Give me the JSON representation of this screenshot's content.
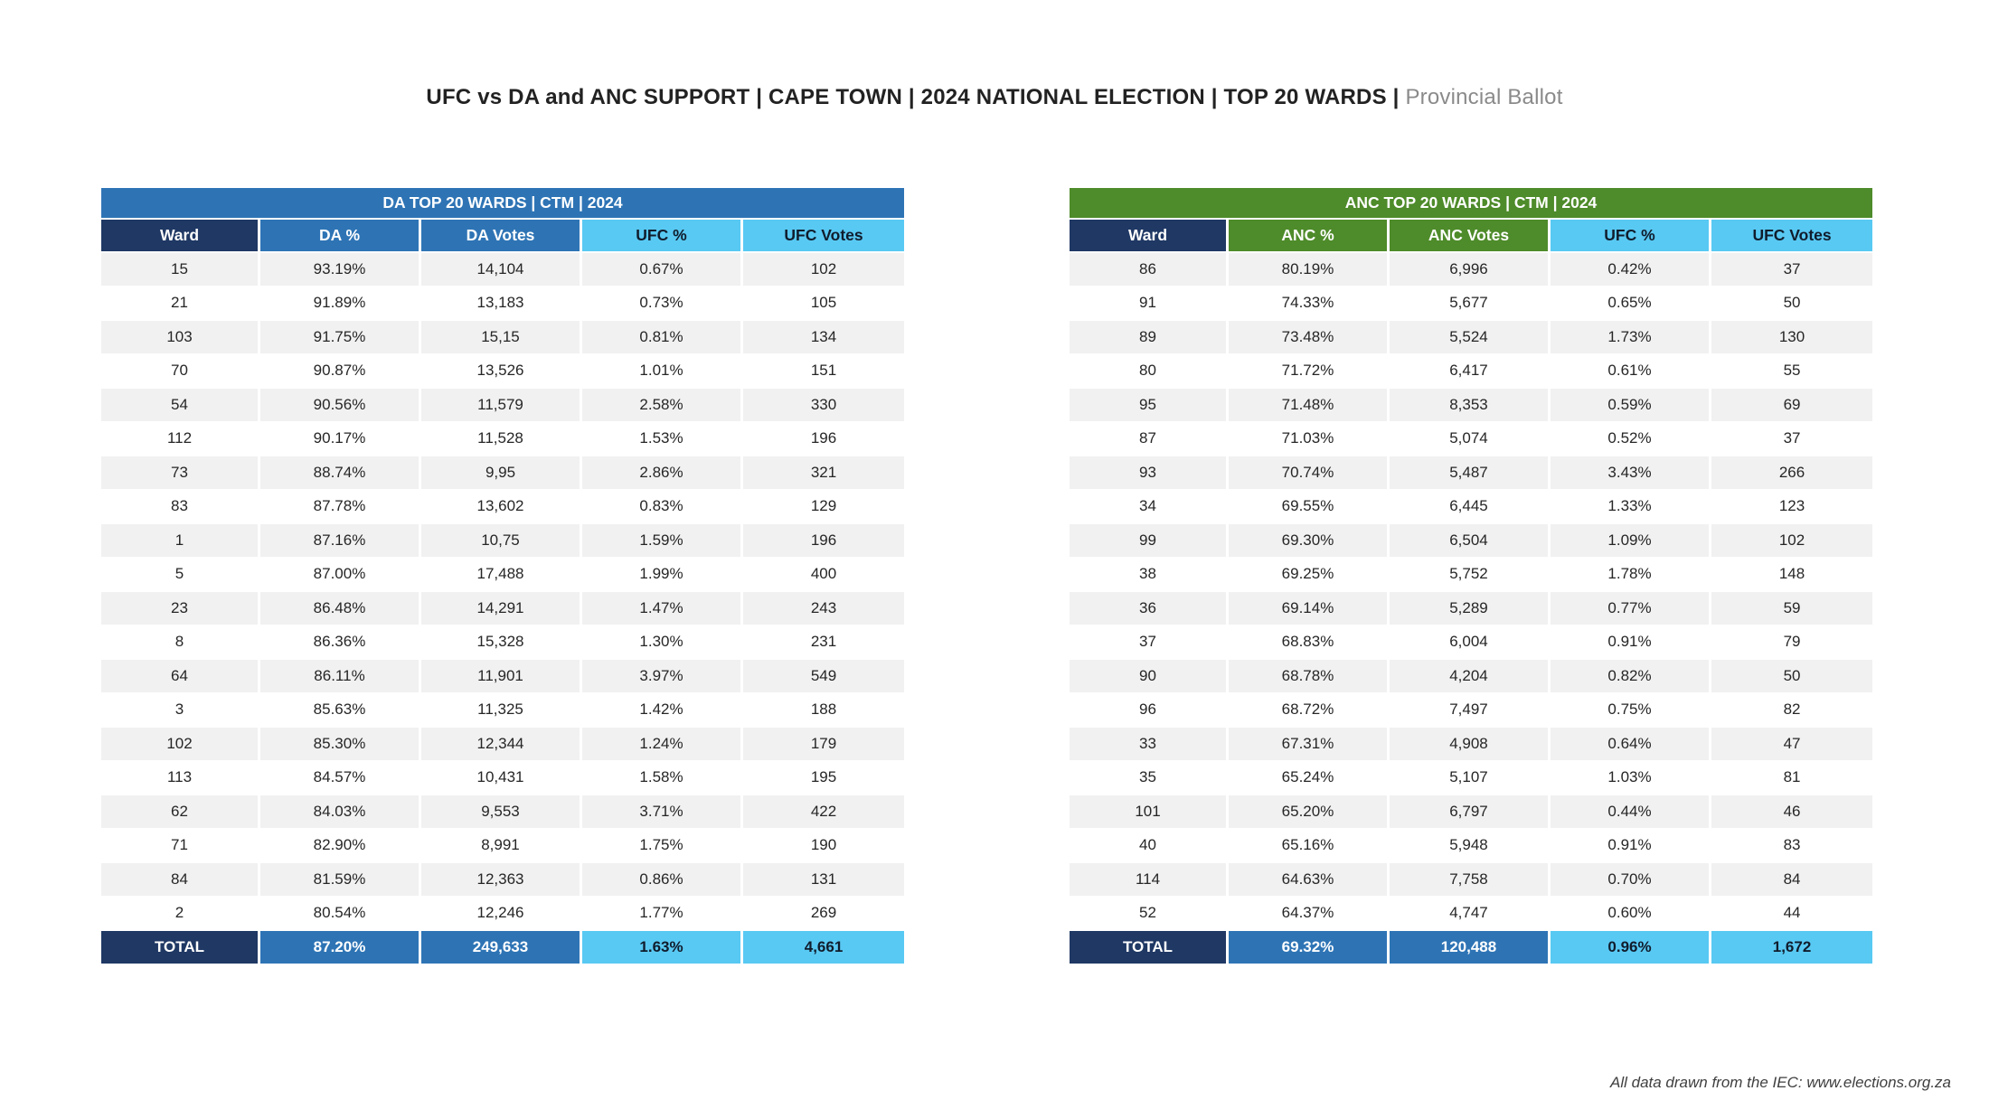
{
  "page": {
    "title_main": "UFC vs DA and ANC SUPPORT | CAPE TOWN | 2024 NATIONAL ELECTION | TOP 20 WARDS",
    "title_separator": " | ",
    "title_suffix": "Provincial Ballot",
    "footer": "All data drawn from the IEC: www.elections.org.za"
  },
  "colors": {
    "navy": "#1F3864",
    "da_blue": "#2E74B5",
    "anc_green": "#4E8B2A",
    "ufc_blue": "#58C9F3",
    "row_alt": "#F1F1F1"
  },
  "chart_data": [
    {
      "type": "table",
      "title": "DA TOP 20 WARDS | CTM | 2024",
      "columns": [
        "Ward",
        "DA %",
        "DA Votes",
        "UFC %",
        "UFC Votes"
      ],
      "rows": [
        [
          "15",
          "93.19%",
          "14,104",
          "0.67%",
          "102"
        ],
        [
          "21",
          "91.89%",
          "13,183",
          "0.73%",
          "105"
        ],
        [
          "103",
          "91.75%",
          "15,15",
          "0.81%",
          "134"
        ],
        [
          "70",
          "90.87%",
          "13,526",
          "1.01%",
          "151"
        ],
        [
          "54",
          "90.56%",
          "11,579",
          "2.58%",
          "330"
        ],
        [
          "112",
          "90.17%",
          "11,528",
          "1.53%",
          "196"
        ],
        [
          "73",
          "88.74%",
          "9,95",
          "2.86%",
          "321"
        ],
        [
          "83",
          "87.78%",
          "13,602",
          "0.83%",
          "129"
        ],
        [
          "1",
          "87.16%",
          "10,75",
          "1.59%",
          "196"
        ],
        [
          "5",
          "87.00%",
          "17,488",
          "1.99%",
          "400"
        ],
        [
          "23",
          "86.48%",
          "14,291",
          "1.47%",
          "243"
        ],
        [
          "8",
          "86.36%",
          "15,328",
          "1.30%",
          "231"
        ],
        [
          "64",
          "86.11%",
          "11,901",
          "3.97%",
          "549"
        ],
        [
          "3",
          "85.63%",
          "11,325",
          "1.42%",
          "188"
        ],
        [
          "102",
          "85.30%",
          "12,344",
          "1.24%",
          "179"
        ],
        [
          "113",
          "84.57%",
          "10,431",
          "1.58%",
          "195"
        ],
        [
          "62",
          "84.03%",
          "9,553",
          "3.71%",
          "422"
        ],
        [
          "71",
          "82.90%",
          "8,991",
          "1.75%",
          "190"
        ],
        [
          "84",
          "81.59%",
          "12,363",
          "0.86%",
          "131"
        ],
        [
          "2",
          "80.54%",
          "12,246",
          "1.77%",
          "269"
        ]
      ],
      "total": [
        "TOTAL",
        "87.20%",
        "249,633",
        "1.63%",
        "4,661"
      ]
    },
    {
      "type": "table",
      "title": "ANC TOP 20 WARDS | CTM | 2024",
      "columns": [
        "Ward",
        "ANC %",
        "ANC Votes",
        "UFC %",
        "UFC Votes"
      ],
      "rows": [
        [
          "86",
          "80.19%",
          "6,996",
          "0.42%",
          "37"
        ],
        [
          "91",
          "74.33%",
          "5,677",
          "0.65%",
          "50"
        ],
        [
          "89",
          "73.48%",
          "5,524",
          "1.73%",
          "130"
        ],
        [
          "80",
          "71.72%",
          "6,417",
          "0.61%",
          "55"
        ],
        [
          "95",
          "71.48%",
          "8,353",
          "0.59%",
          "69"
        ],
        [
          "87",
          "71.03%",
          "5,074",
          "0.52%",
          "37"
        ],
        [
          "93",
          "70.74%",
          "5,487",
          "3.43%",
          "266"
        ],
        [
          "34",
          "69.55%",
          "6,445",
          "1.33%",
          "123"
        ],
        [
          "99",
          "69.30%",
          "6,504",
          "1.09%",
          "102"
        ],
        [
          "38",
          "69.25%",
          "5,752",
          "1.78%",
          "148"
        ],
        [
          "36",
          "69.14%",
          "5,289",
          "0.77%",
          "59"
        ],
        [
          "37",
          "68.83%",
          "6,004",
          "0.91%",
          "79"
        ],
        [
          "90",
          "68.78%",
          "4,204",
          "0.82%",
          "50"
        ],
        [
          "96",
          "68.72%",
          "7,497",
          "0.75%",
          "82"
        ],
        [
          "33",
          "67.31%",
          "4,908",
          "0.64%",
          "47"
        ],
        [
          "35",
          "65.24%",
          "5,107",
          "1.03%",
          "81"
        ],
        [
          "101",
          "65.20%",
          "6,797",
          "0.44%",
          "46"
        ],
        [
          "40",
          "65.16%",
          "5,948",
          "0.91%",
          "83"
        ],
        [
          "114",
          "64.63%",
          "7,758",
          "0.70%",
          "84"
        ],
        [
          "52",
          "64.37%",
          "4,747",
          "0.60%",
          "44"
        ]
      ],
      "total": [
        "TOTAL",
        "69.32%",
        "120,488",
        "0.96%",
        "1,672"
      ]
    }
  ]
}
